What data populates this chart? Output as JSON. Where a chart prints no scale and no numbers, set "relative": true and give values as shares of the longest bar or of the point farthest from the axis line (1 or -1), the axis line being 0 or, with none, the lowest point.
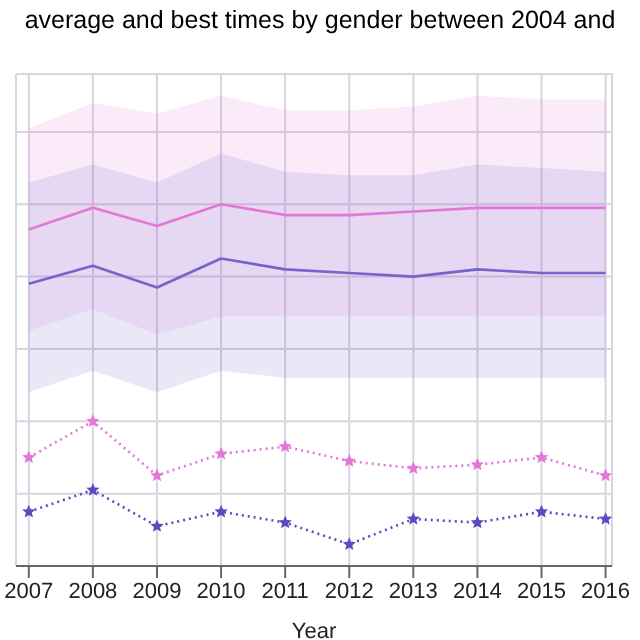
{
  "chart_data": {
    "type": "line",
    "title": "average and best times by gender between 2004 and",
    "xlabel": "Year",
    "relative": true,
    "x": [
      2007,
      2008,
      2009,
      2010,
      2011,
      2012,
      2013,
      2014,
      2015,
      2016
    ],
    "xlim": [
      2006.8,
      2016.1
    ],
    "xticks": [
      2007,
      2008,
      2009,
      2010,
      2011,
      2012,
      2013,
      2014,
      2015,
      2016
    ],
    "grid": true,
    "legend": false,
    "series": [
      {
        "color": "#e377d8",
        "values": [
          0.93,
          0.99,
          0.94,
          1,
          0.97,
          0.97,
          0.98,
          0.99,
          0.99,
          0.99
        ],
        "lower": [
          0.65,
          0.71,
          0.64,
          0.69,
          0.69,
          0.69,
          0.69,
          0.69,
          0.69,
          0.69
        ],
        "upper": [
          1.21,
          1.28,
          1.25,
          1.3,
          1.26,
          1.26,
          1.27,
          1.3,
          1.29,
          1.29
        ],
        "marker": "none",
        "line_style": "solid"
      },
      {
        "color": "#7366c8",
        "values": [
          0.78,
          0.83,
          0.77,
          0.85,
          0.82,
          0.81,
          0.8,
          0.82,
          0.81,
          0.81
        ],
        "lower": [
          0.48,
          0.54,
          0.48,
          0.54,
          0.52,
          0.52,
          0.52,
          0.52,
          0.52,
          0.52
        ],
        "upper": [
          1.06,
          1.11,
          1.06,
          1.14,
          1.09,
          1.08,
          1.08,
          1.11,
          1.1,
          1.09
        ],
        "marker": "none",
        "line_style": "solid"
      },
      {
        "color": "#e377d8",
        "values": [
          0.3,
          0.4,
          0.25,
          0.31,
          0.33,
          0.29,
          0.27,
          0.28,
          0.3,
          0.25
        ],
        "marker": "star",
        "line_style": "dotted"
      },
      {
        "color": "#5a4bc0",
        "values": [
          0.15,
          0.21,
          0.11,
          0.15,
          0.12,
          0.06,
          0.13,
          0.12,
          0.15,
          0.13
        ],
        "marker": "star",
        "line_style": "dotted"
      }
    ]
  }
}
